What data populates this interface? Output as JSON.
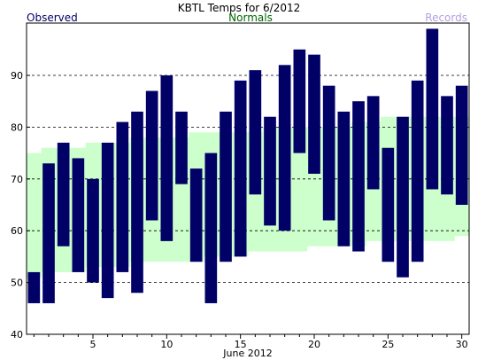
{
  "chart_data": {
    "type": "bar",
    "title": "KBTL Temps for 6/2012",
    "xlabel": "June 2012",
    "ylabel": "",
    "legend": {
      "observed": "Observed",
      "normals": "Normals",
      "records": "Records"
    },
    "colors": {
      "observed": "#000066",
      "normals_band": "#ccffcc",
      "normals_text": "#006600",
      "records_text": "#b3a0e0",
      "grid": "#000000"
    },
    "xlim": [
      1,
      30
    ],
    "ylim": [
      40,
      100
    ],
    "x_ticks": [
      5,
      10,
      15,
      20,
      25,
      30
    ],
    "y_ticks": [
      40,
      50,
      60,
      70,
      80,
      90
    ],
    "grid_y": [
      50,
      60,
      70,
      80,
      90
    ],
    "days": [
      1,
      2,
      3,
      4,
      5,
      6,
      7,
      8,
      9,
      10,
      11,
      12,
      13,
      14,
      15,
      16,
      17,
      18,
      19,
      20,
      21,
      22,
      23,
      24,
      25,
      26,
      27,
      28,
      29,
      30
    ],
    "observed_high": [
      52,
      73,
      77,
      74,
      70,
      77,
      81,
      83,
      87,
      90,
      83,
      72,
      75,
      83,
      89,
      91,
      82,
      92,
      95,
      94,
      88,
      83,
      85,
      86,
      76,
      82,
      89,
      99,
      86,
      88
    ],
    "observed_low": [
      46,
      46,
      57,
      52,
      50,
      47,
      52,
      48,
      62,
      58,
      69,
      54,
      46,
      54,
      55,
      67,
      61,
      60,
      75,
      71,
      62,
      57,
      56,
      68,
      54,
      51,
      54,
      68,
      67,
      65
    ],
    "normal_high": [
      75,
      76,
      76,
      76,
      77,
      77,
      77,
      78,
      78,
      78,
      78,
      79,
      79,
      79,
      79,
      79,
      80,
      80,
      80,
      80,
      80,
      80,
      81,
      81,
      82,
      82,
      82,
      82,
      82,
      82
    ],
    "normal_low": [
      51,
      52,
      52,
      52,
      53,
      53,
      53,
      54,
      54,
      54,
      54,
      54,
      55,
      55,
      55,
      56,
      56,
      56,
      56,
      57,
      57,
      57,
      57,
      58,
      58,
      58,
      58,
      58,
      58,
      59
    ]
  }
}
